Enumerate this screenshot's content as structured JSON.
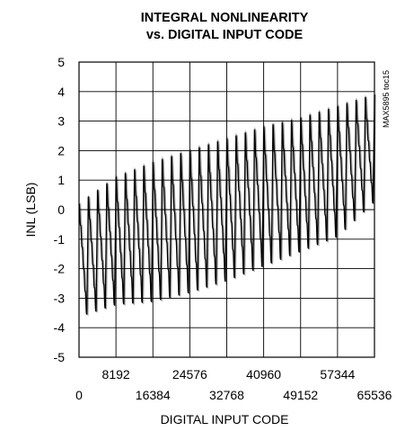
{
  "chart_data": {
    "type": "line",
    "title_line1": "INTEGRAL NONLINEARITY",
    "title_line2": "vs. DIGITAL INPUT CODE",
    "xlabel": "DIGITAL INPUT CODE",
    "ylabel": "INL (LSB)",
    "part_tag": "MAX5895 toc15",
    "xlim": [
      0,
      65536
    ],
    "ylim": [
      -5,
      5
    ],
    "grid": true,
    "x_ticks_upper": [
      "8192",
      "24576",
      "40960",
      "57344"
    ],
    "x_ticks_lower": [
      "0",
      "16384",
      "32768",
      "49152",
      "65536"
    ],
    "y_ticks": [
      "5",
      "4",
      "3",
      "2",
      "1",
      "0",
      "-1",
      "-2",
      "-3",
      "-4",
      "-5"
    ],
    "series": [
      {
        "color": "#000000",
        "sawtooth_period_codes": 2048,
        "envelope_x": [
          0,
          8192,
          16384,
          24576,
          32768,
          40960,
          49152,
          57344,
          65536
        ],
        "envelope_max": [
          0.2,
          1.1,
          1.6,
          2.0,
          2.4,
          2.8,
          3.1,
          3.5,
          3.9
        ],
        "envelope_min": [
          -3.7,
          -3.3,
          -3.2,
          -2.9,
          -2.5,
          -2.0,
          -1.5,
          -1.0,
          0.2
        ]
      }
    ]
  }
}
